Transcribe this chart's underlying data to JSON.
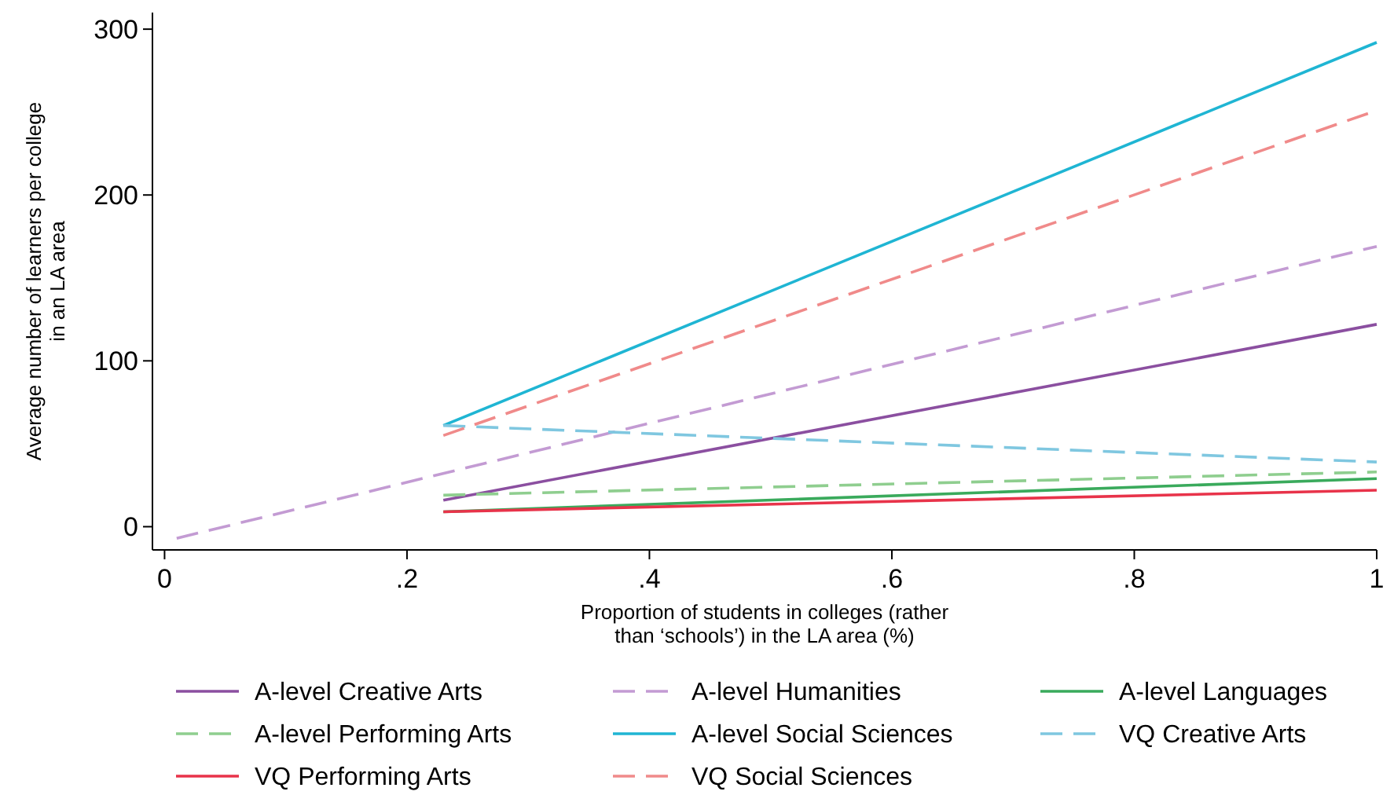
{
  "chart_data": {
    "type": "line",
    "xlabel": "Proportion of students in colleges (rather\nthan ‘schools’) in the LA area (%)",
    "ylabel": "Average number of learners per college\nin an LA area",
    "xlim": [
      -0.01,
      1
    ],
    "ylim": [
      -14,
      310
    ],
    "xticks": [
      0,
      {
        "value": 0.2,
        "label": ".2"
      },
      {
        "value": 0.4,
        "label": ".4"
      },
      {
        "value": 0.6,
        "label": ".6"
      },
      {
        "value": 0.8,
        "label": ".8"
      },
      1
    ],
    "yticks": [
      0,
      100,
      200,
      300
    ],
    "grid": false,
    "legend": "bottom",
    "marker": "none",
    "series": [
      {
        "name": "A-level Creative Arts",
        "color": "#8b4fa0",
        "line_style": "solid",
        "x": [
          0.23,
          1
        ],
        "values": [
          16,
          122
        ]
      },
      {
        "name": "A-level Humanities",
        "color": "#c39bd3",
        "line_style": "dashed",
        "x": [
          0.01,
          1
        ],
        "values": [
          -7,
          169
        ]
      },
      {
        "name": "A-level Languages",
        "color": "#3aaa5c",
        "line_style": "solid",
        "x": [
          0.23,
          1
        ],
        "values": [
          9,
          29
        ]
      },
      {
        "name": "A-level Performing Arts",
        "color": "#8fce8f",
        "line_style": "dashed",
        "x": [
          0.23,
          1
        ],
        "values": [
          19,
          33
        ]
      },
      {
        "name": "A-level Social Sciences",
        "color": "#1fb5d3",
        "line_style": "solid",
        "x": [
          0.23,
          1
        ],
        "values": [
          61,
          292
        ]
      },
      {
        "name": "VQ Creative Arts",
        "color": "#7fc7e0",
        "line_style": "dashed",
        "x": [
          0.23,
          1
        ],
        "values": [
          61,
          39
        ]
      },
      {
        "name": "VQ Performing Arts",
        "color": "#e8334a",
        "line_style": "solid",
        "x": [
          0.23,
          1
        ],
        "values": [
          9,
          22
        ]
      },
      {
        "name": "VQ Social Sciences",
        "color": "#f08a8a",
        "line_style": "dashed",
        "x": [
          0.23,
          1
        ],
        "values": [
          55,
          251
        ]
      }
    ]
  }
}
